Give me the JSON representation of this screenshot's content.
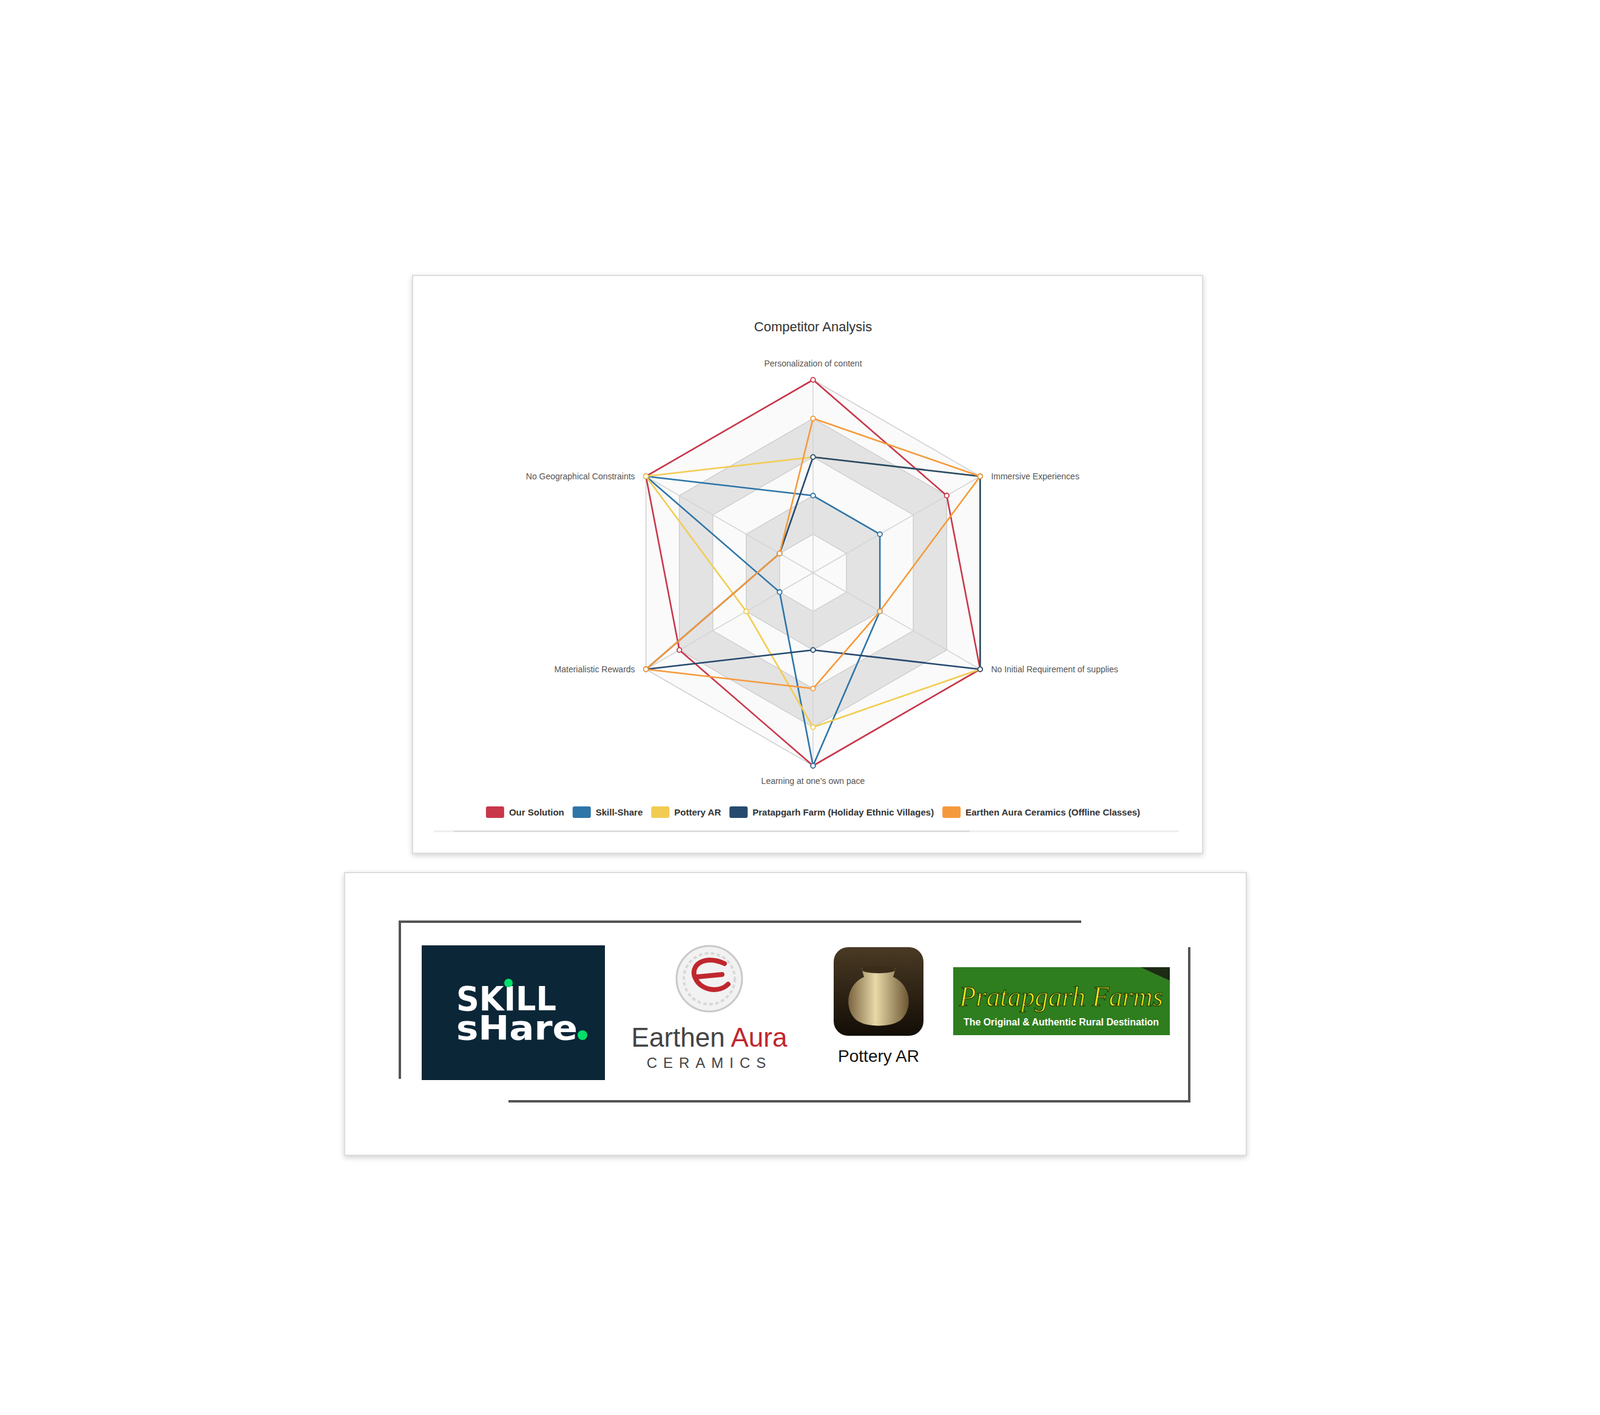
{
  "chart_data": {
    "type": "radar",
    "title": "Competitor Analysis",
    "categories": [
      "Personalization of content",
      "Immersive Experiences",
      "No Initial Requirement of supplies",
      "Learning at one's own pace",
      "Materialistic Rewards",
      "No Geographical Constraints"
    ],
    "series": [
      {
        "name": "Our Solution",
        "color": "#c8374a",
        "values": [
          5,
          4,
          5,
          5,
          4,
          5
        ]
      },
      {
        "name": "Skill-Share",
        "color": "#2e75a8",
        "values": [
          2,
          2,
          2,
          5,
          1,
          5
        ]
      },
      {
        "name": "Pottery AR",
        "color": "#f2cc50",
        "values": [
          3,
          5,
          5,
          4,
          2,
          5
        ]
      },
      {
        "name": "Pratapgarh Farm (Holiday Ethnic Villages)",
        "color": "#264a6e",
        "values": [
          3,
          5,
          5,
          2,
          5,
          1
        ]
      },
      {
        "name": "Earthen Aura Ceramics (Offline Classes)",
        "color": "#f59a3c",
        "values": [
          4,
          5,
          2,
          3,
          5,
          1
        ]
      }
    ],
    "ylim": [
      0,
      5
    ],
    "yticks": [
      0,
      1,
      2,
      3,
      4,
      5
    ],
    "grid": true,
    "legend": "bottom",
    "tick_labels": false,
    "marker": "circle"
  },
  "logos": {
    "skillshare": [
      "SKILL",
      "sHare"
    ],
    "earthen_aura": {
      "name": [
        "Earthen",
        "Aura"
      ],
      "subtitle": "CERAMICS"
    },
    "pottery_ar": "Pottery AR",
    "pratapgarh": {
      "name": "Pratapgarh Farms",
      "tagline": "The Original & Authentic Rural Destination"
    }
  }
}
